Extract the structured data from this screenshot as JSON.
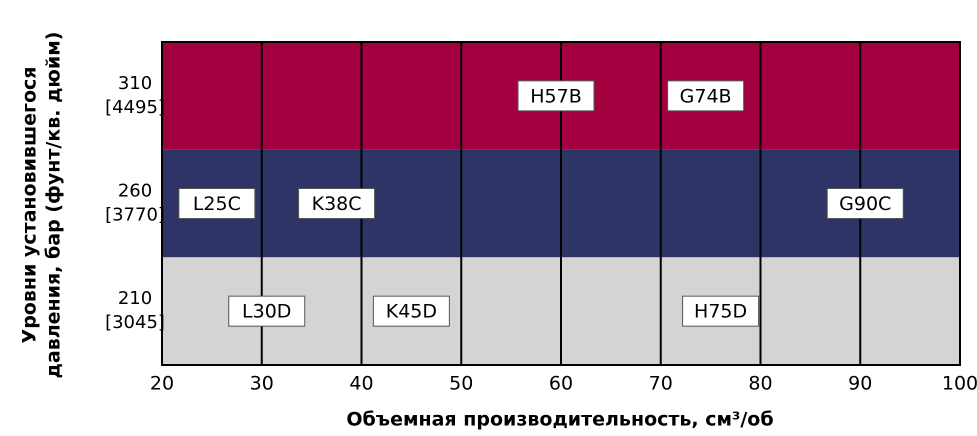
{
  "chart_data": {
    "type": "band",
    "x_label": "Объемная производительность, см³/об",
    "y_label": [
      "Уровни установившегося",
      "давления, бар (фунт/кв. дюйм)"
    ],
    "xlim": [
      20,
      100
    ],
    "xticks": [
      20,
      30,
      40,
      50,
      60,
      70,
      80,
      90,
      100
    ],
    "rows": [
      {
        "value": 310,
        "label": "[4495]",
        "color": "#a3003f"
      },
      {
        "value": 260,
        "label": "[3770]",
        "color": "#2e3466"
      },
      {
        "value": 210,
        "label": "[3045]",
        "color": "#d4d4d4"
      }
    ],
    "models": [
      {
        "name": "H57B",
        "x": 59.5,
        "row": 0
      },
      {
        "name": "G74B",
        "x": 74.5,
        "row": 0
      },
      {
        "name": "L25C",
        "x": 25.5,
        "row": 1
      },
      {
        "name": "K38C",
        "x": 37.5,
        "row": 1
      },
      {
        "name": "G90C",
        "x": 90.5,
        "row": 1
      },
      {
        "name": "L30D",
        "x": 30.5,
        "row": 2
      },
      {
        "name": "K45D",
        "x": 45,
        "row": 2
      },
      {
        "name": "H75D",
        "x": 76,
        "row": 2
      }
    ]
  }
}
